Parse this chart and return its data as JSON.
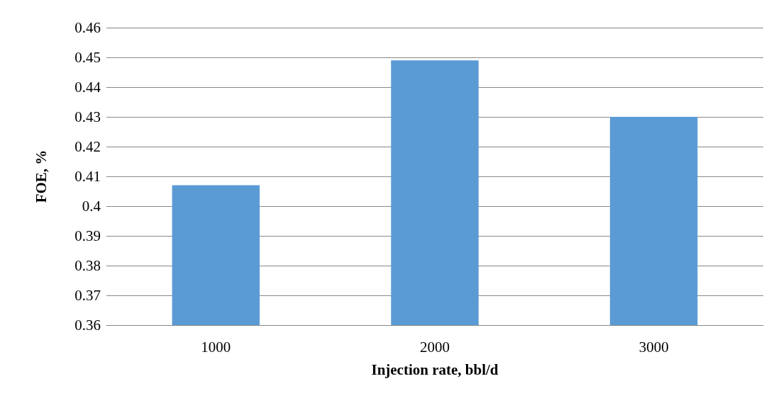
{
  "chart_data": {
    "type": "bar",
    "xlabel": "Injection rate, bbl/d",
    "ylabel": "FOE, %",
    "categories": [
      "1000",
      "2000",
      "3000"
    ],
    "values": [
      0.407,
      0.449,
      0.43
    ],
    "color": "#5b9bd5",
    "ylim": [
      0.36,
      0.46
    ],
    "yticks": [
      0.36,
      0.37,
      0.38,
      0.39,
      0.4,
      0.41,
      0.42,
      0.43,
      0.44,
      0.45,
      0.46
    ],
    "grid": "y"
  }
}
